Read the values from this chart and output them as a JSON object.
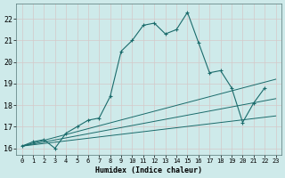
{
  "xlabel": "Humidex (Indice chaleur)",
  "background_color": "#ceeaea",
  "grid_color": "#b8d8d8",
  "line_color": "#1a6b6b",
  "xlim": [
    -0.5,
    23.5
  ],
  "ylim": [
    15.7,
    22.7
  ],
  "yticks": [
    16,
    17,
    18,
    19,
    20,
    21,
    22
  ],
  "xticks": [
    0,
    1,
    2,
    3,
    4,
    5,
    6,
    7,
    8,
    9,
    10,
    11,
    12,
    13,
    14,
    15,
    16,
    17,
    18,
    19,
    20,
    21,
    22,
    23
  ],
  "main_x": [
    0,
    1,
    2,
    3,
    4,
    5,
    6,
    7,
    8,
    9,
    10,
    11,
    12,
    13,
    14,
    15,
    16,
    17,
    18,
    19,
    20,
    21,
    22
  ],
  "main_y": [
    16.1,
    16.3,
    16.4,
    16.0,
    16.7,
    17.0,
    17.3,
    17.4,
    18.4,
    20.5,
    21.0,
    21.7,
    21.8,
    21.3,
    21.5,
    22.3,
    20.9,
    19.5,
    19.6,
    18.8,
    17.2,
    18.1,
    18.8
  ],
  "diag_lines": [
    {
      "x": [
        0,
        23
      ],
      "y": [
        16.1,
        19.2
      ]
    },
    {
      "x": [
        0,
        23
      ],
      "y": [
        16.1,
        18.3
      ]
    },
    {
      "x": [
        0,
        23
      ],
      "y": [
        16.1,
        17.5
      ]
    }
  ]
}
